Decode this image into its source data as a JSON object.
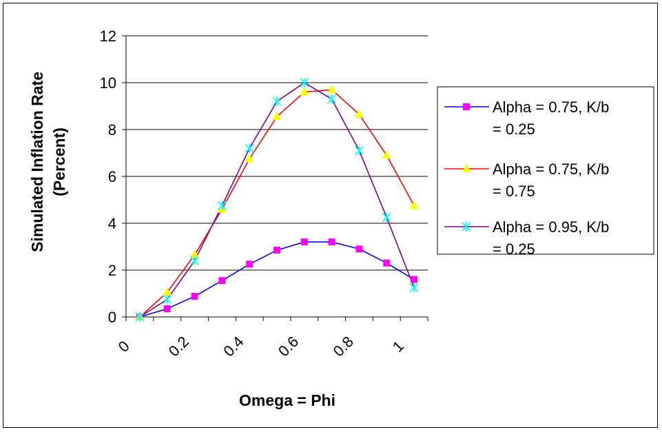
{
  "chart_data": {
    "type": "line",
    "title": "",
    "xlabel": "Omega = Phi",
    "ylabel_lines": [
      "Simulated Inflation Rate",
      "(Percent)"
    ],
    "x": [
      0.05,
      0.15,
      0.25,
      0.35,
      0.45,
      0.55,
      0.65,
      0.75,
      0.85,
      0.95,
      1.05
    ],
    "xlim": [
      0,
      1.1
    ],
    "ylim": [
      0,
      12
    ],
    "x_tick_labels": [
      "0",
      "0.2",
      "0.4",
      "0.6",
      "0.8",
      "1"
    ],
    "x_tick_values": [
      0,
      0.2,
      0.4,
      0.6,
      0.8,
      1.0
    ],
    "y_tick_labels": [
      "0",
      "2",
      "4",
      "6",
      "8",
      "10",
      "12"
    ],
    "y_tick_values": [
      0,
      2,
      4,
      6,
      8,
      10,
      12
    ],
    "grid": "horizontal",
    "legend_position": "right",
    "series": [
      {
        "name_lines": [
          "Alpha = 0.75, K/b",
          "= 0.25"
        ],
        "line_color": "#0000ff",
        "marker": "square",
        "marker_color": "#ff00ff",
        "values": [
          0.0,
          0.35,
          0.88,
          1.55,
          2.25,
          2.85,
          3.2,
          3.2,
          2.9,
          2.3,
          1.6
        ]
      },
      {
        "name_lines": [
          "Alpha = 0.75, K/b",
          "= 0.75"
        ],
        "line_color": "#ff0000",
        "marker": "triangle",
        "marker_color": "#ffff00",
        "values": [
          0.0,
          1.05,
          2.65,
          4.6,
          6.75,
          8.55,
          9.6,
          9.7,
          8.65,
          6.9,
          4.75
        ]
      },
      {
        "name_lines": [
          "Alpha = 0.95, K/b",
          "= 0.25"
        ],
        "line_color": "#800080",
        "marker": "x-star",
        "marker_color": "#00ffff",
        "values": [
          0.0,
          0.75,
          2.4,
          4.75,
          7.2,
          9.2,
          10.0,
          9.3,
          7.1,
          4.25,
          1.25
        ]
      }
    ]
  }
}
